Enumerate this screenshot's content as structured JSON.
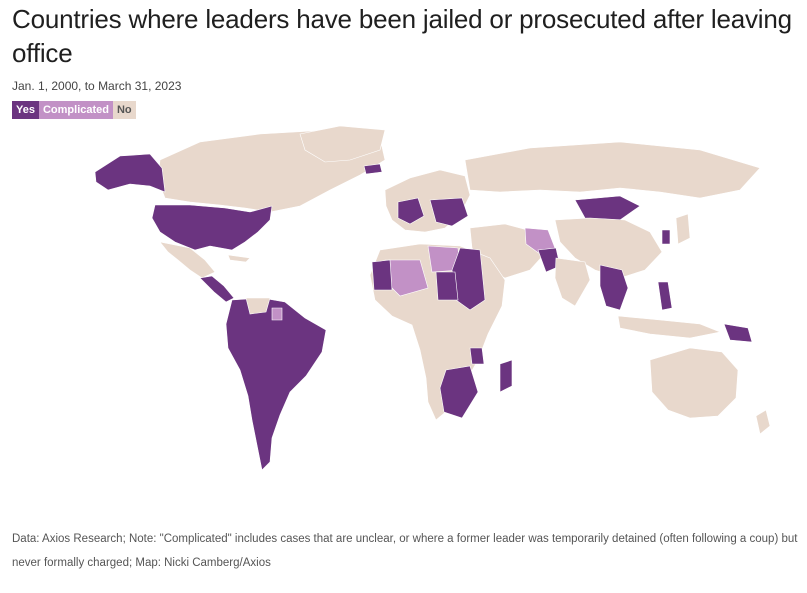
{
  "title": "Countries where leaders have been jailed or prosecuted after leaving office",
  "subtitle": "Jan. 1, 2000, to March 31, 2023",
  "legend": [
    {
      "label": "Yes",
      "color": "#6b3480",
      "text_color": "#ffffff"
    },
    {
      "label": "Complicated",
      "color": "#c291c6",
      "text_color": "#ffffff"
    },
    {
      "label": "No",
      "color": "#e8d8cc",
      "text_color": "#555555"
    }
  ],
  "colors": {
    "yes": "#6b3480",
    "complicated": "#c291c6",
    "no": "#e8d8cc"
  },
  "footnote": "Data: Axios Research; Note: \"Complicated\" includes cases that are unclear, or where a former leader was temporarily detained (often following a coup) but never formally charged; Map: Nicki Camberg/Axios"
}
